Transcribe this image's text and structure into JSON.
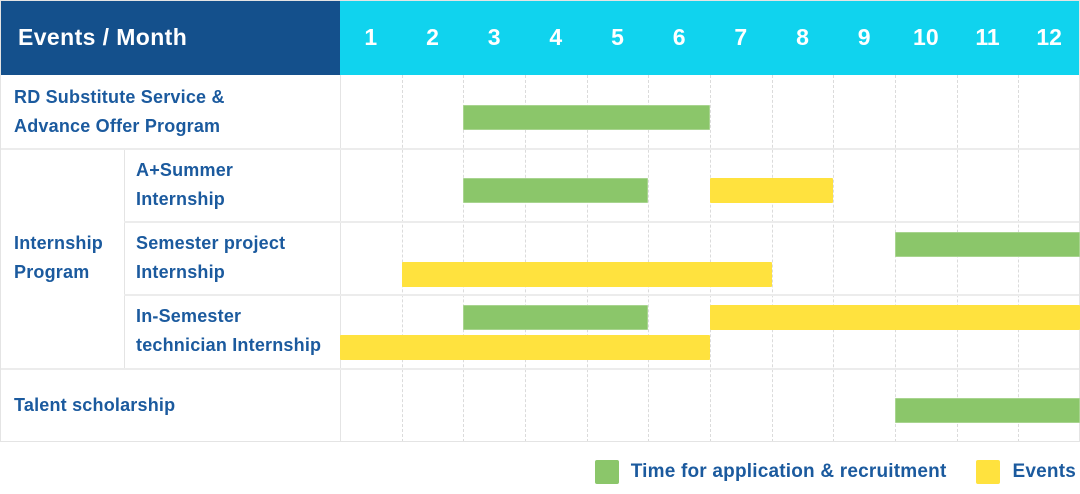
{
  "palette": {
    "header_bg": "#14508C",
    "months_bg": "#10D3EE",
    "green": "#8BC66A",
    "yellow": "#FFE23E",
    "label_text": "#1B5A9E",
    "header_text": "#FFFFFF",
    "grid_dashed": "#DBDBDB",
    "grid_solid": "#ECECEC"
  },
  "header": {
    "title": "Events / Month",
    "months": [
      "1",
      "2",
      "3",
      "4",
      "5",
      "6",
      "7",
      "8",
      "9",
      "10",
      "11",
      "12"
    ]
  },
  "legend": {
    "items": [
      {
        "key": "green",
        "label": "Time for application & recruitment"
      },
      {
        "key": "yellow",
        "label": "Events"
      }
    ]
  },
  "chart_data": {
    "type": "gantt",
    "title": "Events / Month",
    "x_axis": {
      "label": "Month",
      "ticks": [
        1,
        2,
        3,
        4,
        5,
        6,
        7,
        8,
        9,
        10,
        11,
        12
      ],
      "range": [
        1,
        12
      ]
    },
    "series_meaning": {
      "green": "Time for application & recruitment",
      "yellow": "Events"
    },
    "groups": [
      {
        "label_lines": [
          "Internship",
          "Program"
        ],
        "row_start": 1,
        "row_end": 3
      }
    ],
    "rows": [
      {
        "id": "rd-substitute-service",
        "group": "",
        "label_lines": [
          "RD Substitute Service &",
          "Advance Offer Program"
        ],
        "bars": [
          {
            "series": "green",
            "start_month": 3,
            "end_month": 6,
            "line": "single"
          }
        ]
      },
      {
        "id": "a-plus-summer-internship",
        "group": "Internship Program",
        "label_lines": [
          "A+Summer",
          "Internship"
        ],
        "bars": [
          {
            "series": "green",
            "start_month": 3,
            "end_month": 5,
            "line": "single"
          },
          {
            "series": "yellow",
            "start_month": 7,
            "end_month": 8,
            "line": "single"
          }
        ]
      },
      {
        "id": "semester-project-internship",
        "group": "Internship Program",
        "label_lines": [
          "Semester project",
          "Internship"
        ],
        "bars": [
          {
            "series": "green",
            "start_month": 10,
            "end_month": 12,
            "line": "top"
          },
          {
            "series": "yellow",
            "start_month": 2,
            "end_month": 7,
            "line": "bottom"
          }
        ]
      },
      {
        "id": "in-semester-technician-internship",
        "group": "Internship Program",
        "label_lines": [
          "In-Semester",
          "technician Internship"
        ],
        "bars": [
          {
            "series": "green",
            "start_month": 3,
            "end_month": 5,
            "line": "top"
          },
          {
            "series": "yellow",
            "start_month": 7,
            "end_month": 12,
            "line": "top"
          },
          {
            "series": "yellow",
            "start_month": 1,
            "end_month": 6,
            "line": "bottom"
          }
        ]
      },
      {
        "id": "talent-scholarship",
        "group": "",
        "label_lines": [
          "Talent scholarship"
        ],
        "bars": [
          {
            "series": "green",
            "start_month": 10,
            "end_month": 12,
            "line": "single"
          }
        ]
      }
    ]
  }
}
